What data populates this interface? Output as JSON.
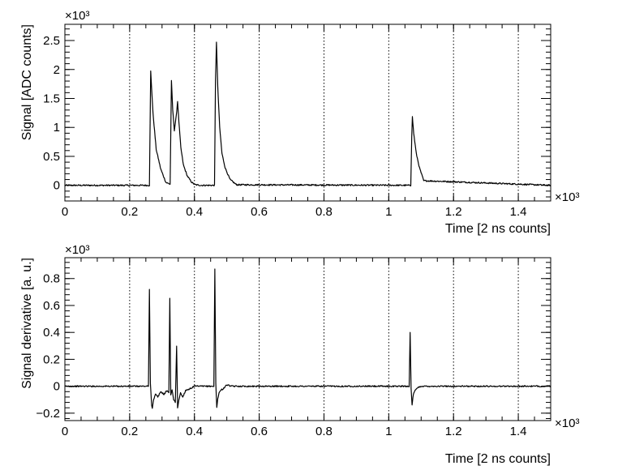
{
  "chart_data": [
    {
      "type": "line",
      "xlabel": "Time [2 ns counts]",
      "ylabel": "Signal [ADC counts]",
      "x_multiplier": "×10³",
      "y_multiplier": "×10³",
      "xlim": [
        0,
        1.5
      ],
      "ylim": [
        -0.27,
        2.78
      ],
      "x_ticks": [
        0,
        0.2,
        0.4,
        0.6,
        0.8,
        1,
        1.2,
        1.4
      ],
      "x_tick_labels": [
        "0",
        "0.2",
        "0.4",
        "0.6",
        "0.8",
        "1",
        "1.2",
        "1.4"
      ],
      "y_ticks": [
        0,
        0.5,
        1,
        1.5,
        2,
        2.5
      ],
      "y_tick_labels": [
        "0",
        "0.5",
        "1",
        "1.5",
        "2",
        "2.5"
      ],
      "grid": "vertical dotted",
      "series": [
        {
          "x": [
            0,
            0.261,
            0.265,
            0.272,
            0.282,
            0.296,
            0.312,
            0.325,
            0.329,
            0.333,
            0.338,
            0.344,
            0.348,
            0.352,
            0.358,
            0.366,
            0.378,
            0.392,
            0.402,
            0.42,
            0.462,
            0.465,
            0.468,
            0.472,
            0.478,
            0.485,
            0.495,
            0.51,
            0.53,
            1.068,
            1.071,
            1.073,
            1.077,
            1.085,
            1.095,
            1.108,
            1.5
          ],
          "y": [
            0,
            0,
            1.97,
            1.25,
            0.62,
            0.28,
            0.05,
            0.02,
            1.8,
            1.3,
            0.95,
            1.2,
            1.45,
            1.1,
            0.65,
            0.35,
            0.16,
            0.05,
            0.01,
            0,
            0,
            1.8,
            2.48,
            1.7,
            1.0,
            0.55,
            0.3,
            0.1,
            0.01,
            0,
            0.85,
            1.18,
            0.9,
            0.55,
            0.3,
            0.08,
            0
          ]
        }
      ]
    },
    {
      "type": "line",
      "xlabel": "Time [2 ns counts]",
      "ylabel": "Signal derivative [a. u.]",
      "x_multiplier": "×10³",
      "y_multiplier": "×10³",
      "xlim": [
        0,
        1.5
      ],
      "ylim": [
        -0.255,
        0.955
      ],
      "x_ticks": [
        0,
        0.2,
        0.4,
        0.6,
        0.8,
        1,
        1.2,
        1.4
      ],
      "x_tick_labels": [
        "0",
        "0.2",
        "0.4",
        "0.6",
        "0.8",
        "1",
        "1.2",
        "1.4"
      ],
      "y_ticks": [
        -0.2,
        0,
        0.2,
        0.4,
        0.6,
        0.8
      ],
      "y_tick_labels": [
        "−0.2",
        "0",
        "0.2",
        "0.4",
        "0.6",
        "0.8"
      ],
      "grid": "vertical dotted",
      "series": [
        {
          "x": [
            0,
            0.258,
            0.261,
            0.264,
            0.268,
            0.27,
            0.274,
            0.28,
            0.287,
            0.296,
            0.306,
            0.316,
            0.321,
            0.324,
            0.327,
            0.331,
            0.336,
            0.341,
            0.345,
            0.348,
            0.352,
            0.357,
            0.364,
            0.373,
            0.385,
            0.4,
            0.46,
            0.463,
            0.466,
            0.469,
            0.472,
            0.476,
            0.481,
            0.488,
            0.5,
            0.515,
            1.063,
            1.066,
            1.069,
            1.072,
            1.076,
            1.082,
            1.09,
            1.1,
            1.5
          ],
          "y": [
            0,
            0,
            0.72,
            0.02,
            -0.14,
            -0.16,
            -0.1,
            -0.06,
            -0.08,
            -0.04,
            -0.06,
            -0.03,
            -0.05,
            0.65,
            -0.06,
            -0.03,
            -0.1,
            -0.12,
            0.3,
            -0.16,
            -0.1,
            -0.05,
            -0.08,
            -0.03,
            -0.02,
            0,
            0,
            0.87,
            0.02,
            -0.16,
            -0.09,
            -0.05,
            -0.03,
            -0.02,
            0.01,
            0,
            0,
            0.4,
            -0.02,
            -0.14,
            -0.06,
            -0.03,
            -0.01,
            0,
            0
          ]
        }
      ]
    }
  ]
}
